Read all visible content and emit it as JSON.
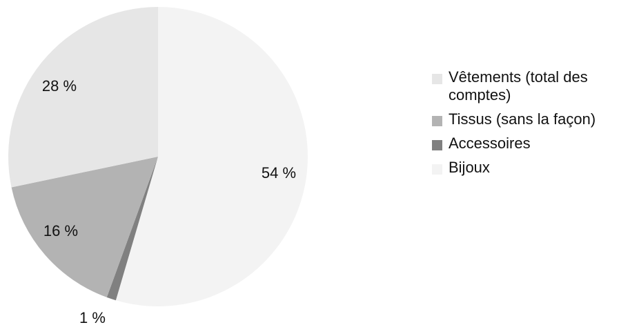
{
  "chart_data": {
    "type": "pie",
    "title": "",
    "slices": [
      {
        "label": "Bijoux",
        "value": 54,
        "display": "54 %",
        "color": "#f3f3f3"
      },
      {
        "label": "Accessoires",
        "value": 1,
        "display": "1 %",
        "color": "#808080"
      },
      {
        "label": "Tissus (sans la façon)",
        "value": 16,
        "display": "16 %",
        "color": "#b3b3b3"
      },
      {
        "label": "Vêtements (total des comptes)",
        "value": 28,
        "display": "28 %",
        "color": "#e6e6e6"
      }
    ],
    "legend": [
      {
        "label": "Vêtements (total des comptes)",
        "color": "#e6e6e6"
      },
      {
        "label": "Tissus (sans la façon)",
        "color": "#b3b3b3"
      },
      {
        "label": "Accessoires",
        "color": "#808080"
      },
      {
        "label": "Bijoux",
        "color": "#f3f3f3"
      }
    ],
    "legend_position": "right"
  }
}
